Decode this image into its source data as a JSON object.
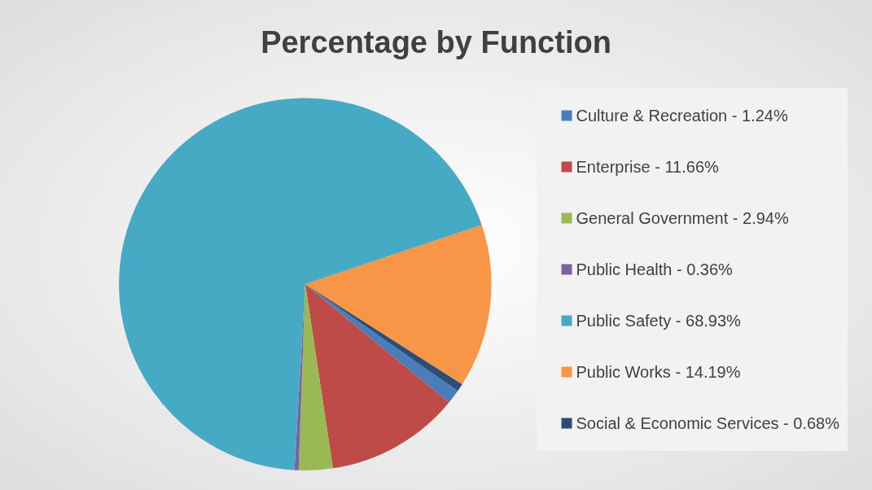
{
  "chart_data": {
    "type": "pie",
    "title": "Percentage by Function",
    "categories": [
      "Culture & Recreation - 1.24%",
      "Enterprise - 11.66%",
      "General Government - 2.94%",
      "Public Health - 0.36%",
      "Public Safety - 68.93%",
      "Public Works - 14.19%",
      "Social & Economic Services - 0.68%"
    ],
    "values": [
      1.24,
      11.66,
      2.94,
      0.36,
      68.93,
      14.19,
      0.68
    ],
    "colors": [
      "#4a7ebb",
      "#be4b48",
      "#98b954",
      "#7d60a0",
      "#46aac5",
      "#f79646",
      "#2c4d75"
    ],
    "legend": "right"
  }
}
